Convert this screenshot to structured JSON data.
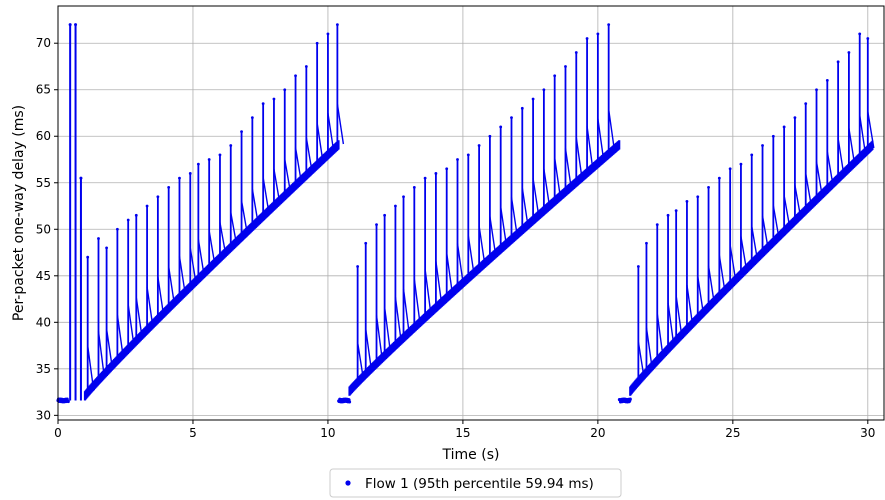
{
  "chart_data": {
    "type": "scatter",
    "title": "",
    "xlabel": "Time (s)",
    "ylabel": "Per-packet one-way delay (ms)",
    "xlim": [
      0,
      30.6
    ],
    "ylim": [
      29.5,
      74
    ],
    "xticks": [
      0,
      5,
      10,
      15,
      20,
      25,
      30
    ],
    "yticks": [
      30,
      35,
      40,
      45,
      50,
      55,
      60,
      65,
      70
    ],
    "grid": true,
    "legend_position": "bottom-center",
    "marker_color": "#0000ee",
    "series": [
      {
        "name": "Flow 1 (95th percentile 59.94 ms)",
        "cycles": [
          {
            "idle": {
              "x_start": 0.0,
              "x_end": 0.4,
              "delay": 31.6
            },
            "initial_spikes": [
              {
                "x": 0.45,
                "peak": 72.0
              },
              {
                "x": 0.65,
                "peak": 72.0
              },
              {
                "x": 0.85,
                "peak": 55.5
              }
            ],
            "baseline_start": {
              "x": 1.0,
              "delay": 32.0
            },
            "baseline_end": {
              "x": 10.4,
              "delay": 59.0
            },
            "spikes": [
              {
                "x": 1.1,
                "peak": 47.0
              },
              {
                "x": 1.5,
                "peak": 49.0
              },
              {
                "x": 1.8,
                "peak": 48.0
              },
              {
                "x": 2.2,
                "peak": 50.0
              },
              {
                "x": 2.6,
                "peak": 51.0
              },
              {
                "x": 2.9,
                "peak": 51.5
              },
              {
                "x": 3.3,
                "peak": 52.5
              },
              {
                "x": 3.7,
                "peak": 53.5
              },
              {
                "x": 4.1,
                "peak": 54.5
              },
              {
                "x": 4.5,
                "peak": 55.5
              },
              {
                "x": 4.9,
                "peak": 56.0
              },
              {
                "x": 5.2,
                "peak": 57.0
              },
              {
                "x": 5.6,
                "peak": 57.5
              },
              {
                "x": 6.0,
                "peak": 58.0
              },
              {
                "x": 6.4,
                "peak": 59.0
              },
              {
                "x": 6.8,
                "peak": 60.5
              },
              {
                "x": 7.2,
                "peak": 62.0
              },
              {
                "x": 7.6,
                "peak": 63.5
              },
              {
                "x": 8.0,
                "peak": 64.0
              },
              {
                "x": 8.4,
                "peak": 65.0
              },
              {
                "x": 8.8,
                "peak": 66.5
              },
              {
                "x": 9.2,
                "peak": 67.5
              },
              {
                "x": 9.6,
                "peak": 70.0
              },
              {
                "x": 10.0,
                "peak": 71.0
              },
              {
                "x": 10.35,
                "peak": 72.0
              }
            ]
          },
          {
            "idle": {
              "x_start": 10.4,
              "x_end": 10.8,
              "delay": 31.6
            },
            "initial_spikes": [],
            "baseline_start": {
              "x": 10.8,
              "delay": 32.5
            },
            "baseline_end": {
              "x": 20.8,
              "delay": 59.0
            },
            "spikes": [
              {
                "x": 11.1,
                "peak": 46.0
              },
              {
                "x": 11.4,
                "peak": 48.5
              },
              {
                "x": 11.8,
                "peak": 50.5
              },
              {
                "x": 12.1,
                "peak": 51.5
              },
              {
                "x": 12.5,
                "peak": 52.5
              },
              {
                "x": 12.8,
                "peak": 53.5
              },
              {
                "x": 13.2,
                "peak": 54.5
              },
              {
                "x": 13.6,
                "peak": 55.5
              },
              {
                "x": 14.0,
                "peak": 56.0
              },
              {
                "x": 14.4,
                "peak": 56.5
              },
              {
                "x": 14.8,
                "peak": 57.5
              },
              {
                "x": 15.2,
                "peak": 58.0
              },
              {
                "x": 15.6,
                "peak": 59.0
              },
              {
                "x": 16.0,
                "peak": 60.0
              },
              {
                "x": 16.4,
                "peak": 61.0
              },
              {
                "x": 16.8,
                "peak": 62.0
              },
              {
                "x": 17.2,
                "peak": 63.0
              },
              {
                "x": 17.6,
                "peak": 64.0
              },
              {
                "x": 18.0,
                "peak": 65.0
              },
              {
                "x": 18.4,
                "peak": 66.5
              },
              {
                "x": 18.8,
                "peak": 67.5
              },
              {
                "x": 19.2,
                "peak": 69.0
              },
              {
                "x": 19.6,
                "peak": 70.5
              },
              {
                "x": 20.0,
                "peak": 71.0
              },
              {
                "x": 20.4,
                "peak": 72.0
              }
            ]
          },
          {
            "idle": {
              "x_start": 20.8,
              "x_end": 21.2,
              "delay": 31.6
            },
            "initial_spikes": [],
            "baseline_start": {
              "x": 21.2,
              "delay": 32.5
            },
            "baseline_end": {
              "x": 30.2,
              "delay": 59.0
            },
            "spikes": [
              {
                "x": 21.5,
                "peak": 46.0
              },
              {
                "x": 21.8,
                "peak": 48.5
              },
              {
                "x": 22.2,
                "peak": 50.5
              },
              {
                "x": 22.6,
                "peak": 51.5
              },
              {
                "x": 22.9,
                "peak": 52.0
              },
              {
                "x": 23.3,
                "peak": 53.0
              },
              {
                "x": 23.7,
                "peak": 53.5
              },
              {
                "x": 24.1,
                "peak": 54.5
              },
              {
                "x": 24.5,
                "peak": 55.5
              },
              {
                "x": 24.9,
                "peak": 56.5
              },
              {
                "x": 25.3,
                "peak": 57.0
              },
              {
                "x": 25.7,
                "peak": 58.0
              },
              {
                "x": 26.1,
                "peak": 59.0
              },
              {
                "x": 26.5,
                "peak": 60.0
              },
              {
                "x": 26.9,
                "peak": 61.0
              },
              {
                "x": 27.3,
                "peak": 62.0
              },
              {
                "x": 27.7,
                "peak": 63.5
              },
              {
                "x": 28.1,
                "peak": 65.0
              },
              {
                "x": 28.5,
                "peak": 66.0
              },
              {
                "x": 28.9,
                "peak": 68.0
              },
              {
                "x": 29.3,
                "peak": 69.0
              },
              {
                "x": 29.7,
                "peak": 71.0
              },
              {
                "x": 30.0,
                "peak": 70.5
              }
            ]
          }
        ]
      }
    ]
  }
}
